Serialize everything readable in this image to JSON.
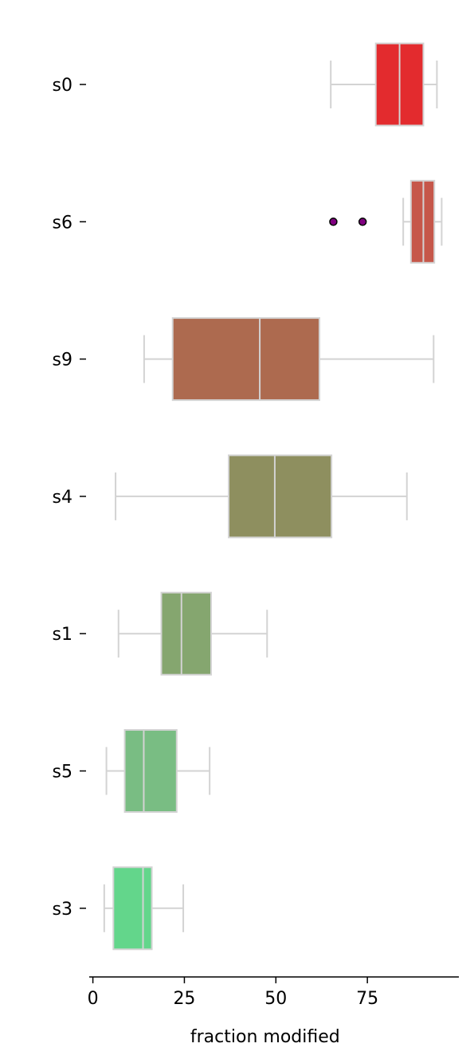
{
  "chart_data": {
    "type": "boxplot",
    "orientation": "horizontal",
    "title": "",
    "xlabel": "fraction modified",
    "ylabel": "",
    "xlim": [
      -1,
      100
    ],
    "xticks": [
      0,
      25,
      50,
      75
    ],
    "grid": false,
    "colors": {
      "whisker": "#d3d3d3",
      "box_edge": "#d3d3d3",
      "median": "#d3d3d3",
      "outlier_fill": "#800080",
      "outlier_edge": "#000000",
      "axis": "#000000"
    },
    "categories": [
      "s0",
      "s6",
      "s9",
      "s4",
      "s1",
      "s5",
      "s3"
    ],
    "boxes": [
      {
        "label": "s0",
        "whislo": 65.0,
        "q1": 77.3,
        "med": 83.8,
        "q3": 90.3,
        "whishi": 94.0,
        "fliers": [],
        "color": "#e32b2e"
      },
      {
        "label": "s6",
        "whislo": 84.8,
        "q1": 86.9,
        "med": 90.3,
        "q3": 93.3,
        "whishi": 95.3,
        "fliers": [
          65.7,
          73.7
        ],
        "color": "#c6574a"
      },
      {
        "label": "s9",
        "whislo": 14.0,
        "q1": 21.8,
        "med": 45.6,
        "q3": 61.9,
        "whishi": 93.1,
        "fliers": [],
        "color": "#ad6a4f"
      },
      {
        "label": "s4",
        "whislo": 6.2,
        "q1": 37.1,
        "med": 49.7,
        "q3": 65.2,
        "whishi": 85.8,
        "fliers": [],
        "color": "#8e8f5f"
      },
      {
        "label": "s1",
        "whislo": 7.0,
        "q1": 18.7,
        "med": 24.2,
        "q3": 32.3,
        "whishi": 47.6,
        "fliers": [],
        "color": "#85a66f"
      },
      {
        "label": "s5",
        "whislo": 3.7,
        "q1": 8.7,
        "med": 13.9,
        "q3": 22.9,
        "whishi": 31.9,
        "fliers": [],
        "color": "#79bd83"
      },
      {
        "label": "s3",
        "whislo": 3.1,
        "q1": 5.6,
        "med": 13.7,
        "q3": 16.1,
        "whishi": 24.7,
        "fliers": [],
        "color": "#63d68b"
      }
    ]
  }
}
